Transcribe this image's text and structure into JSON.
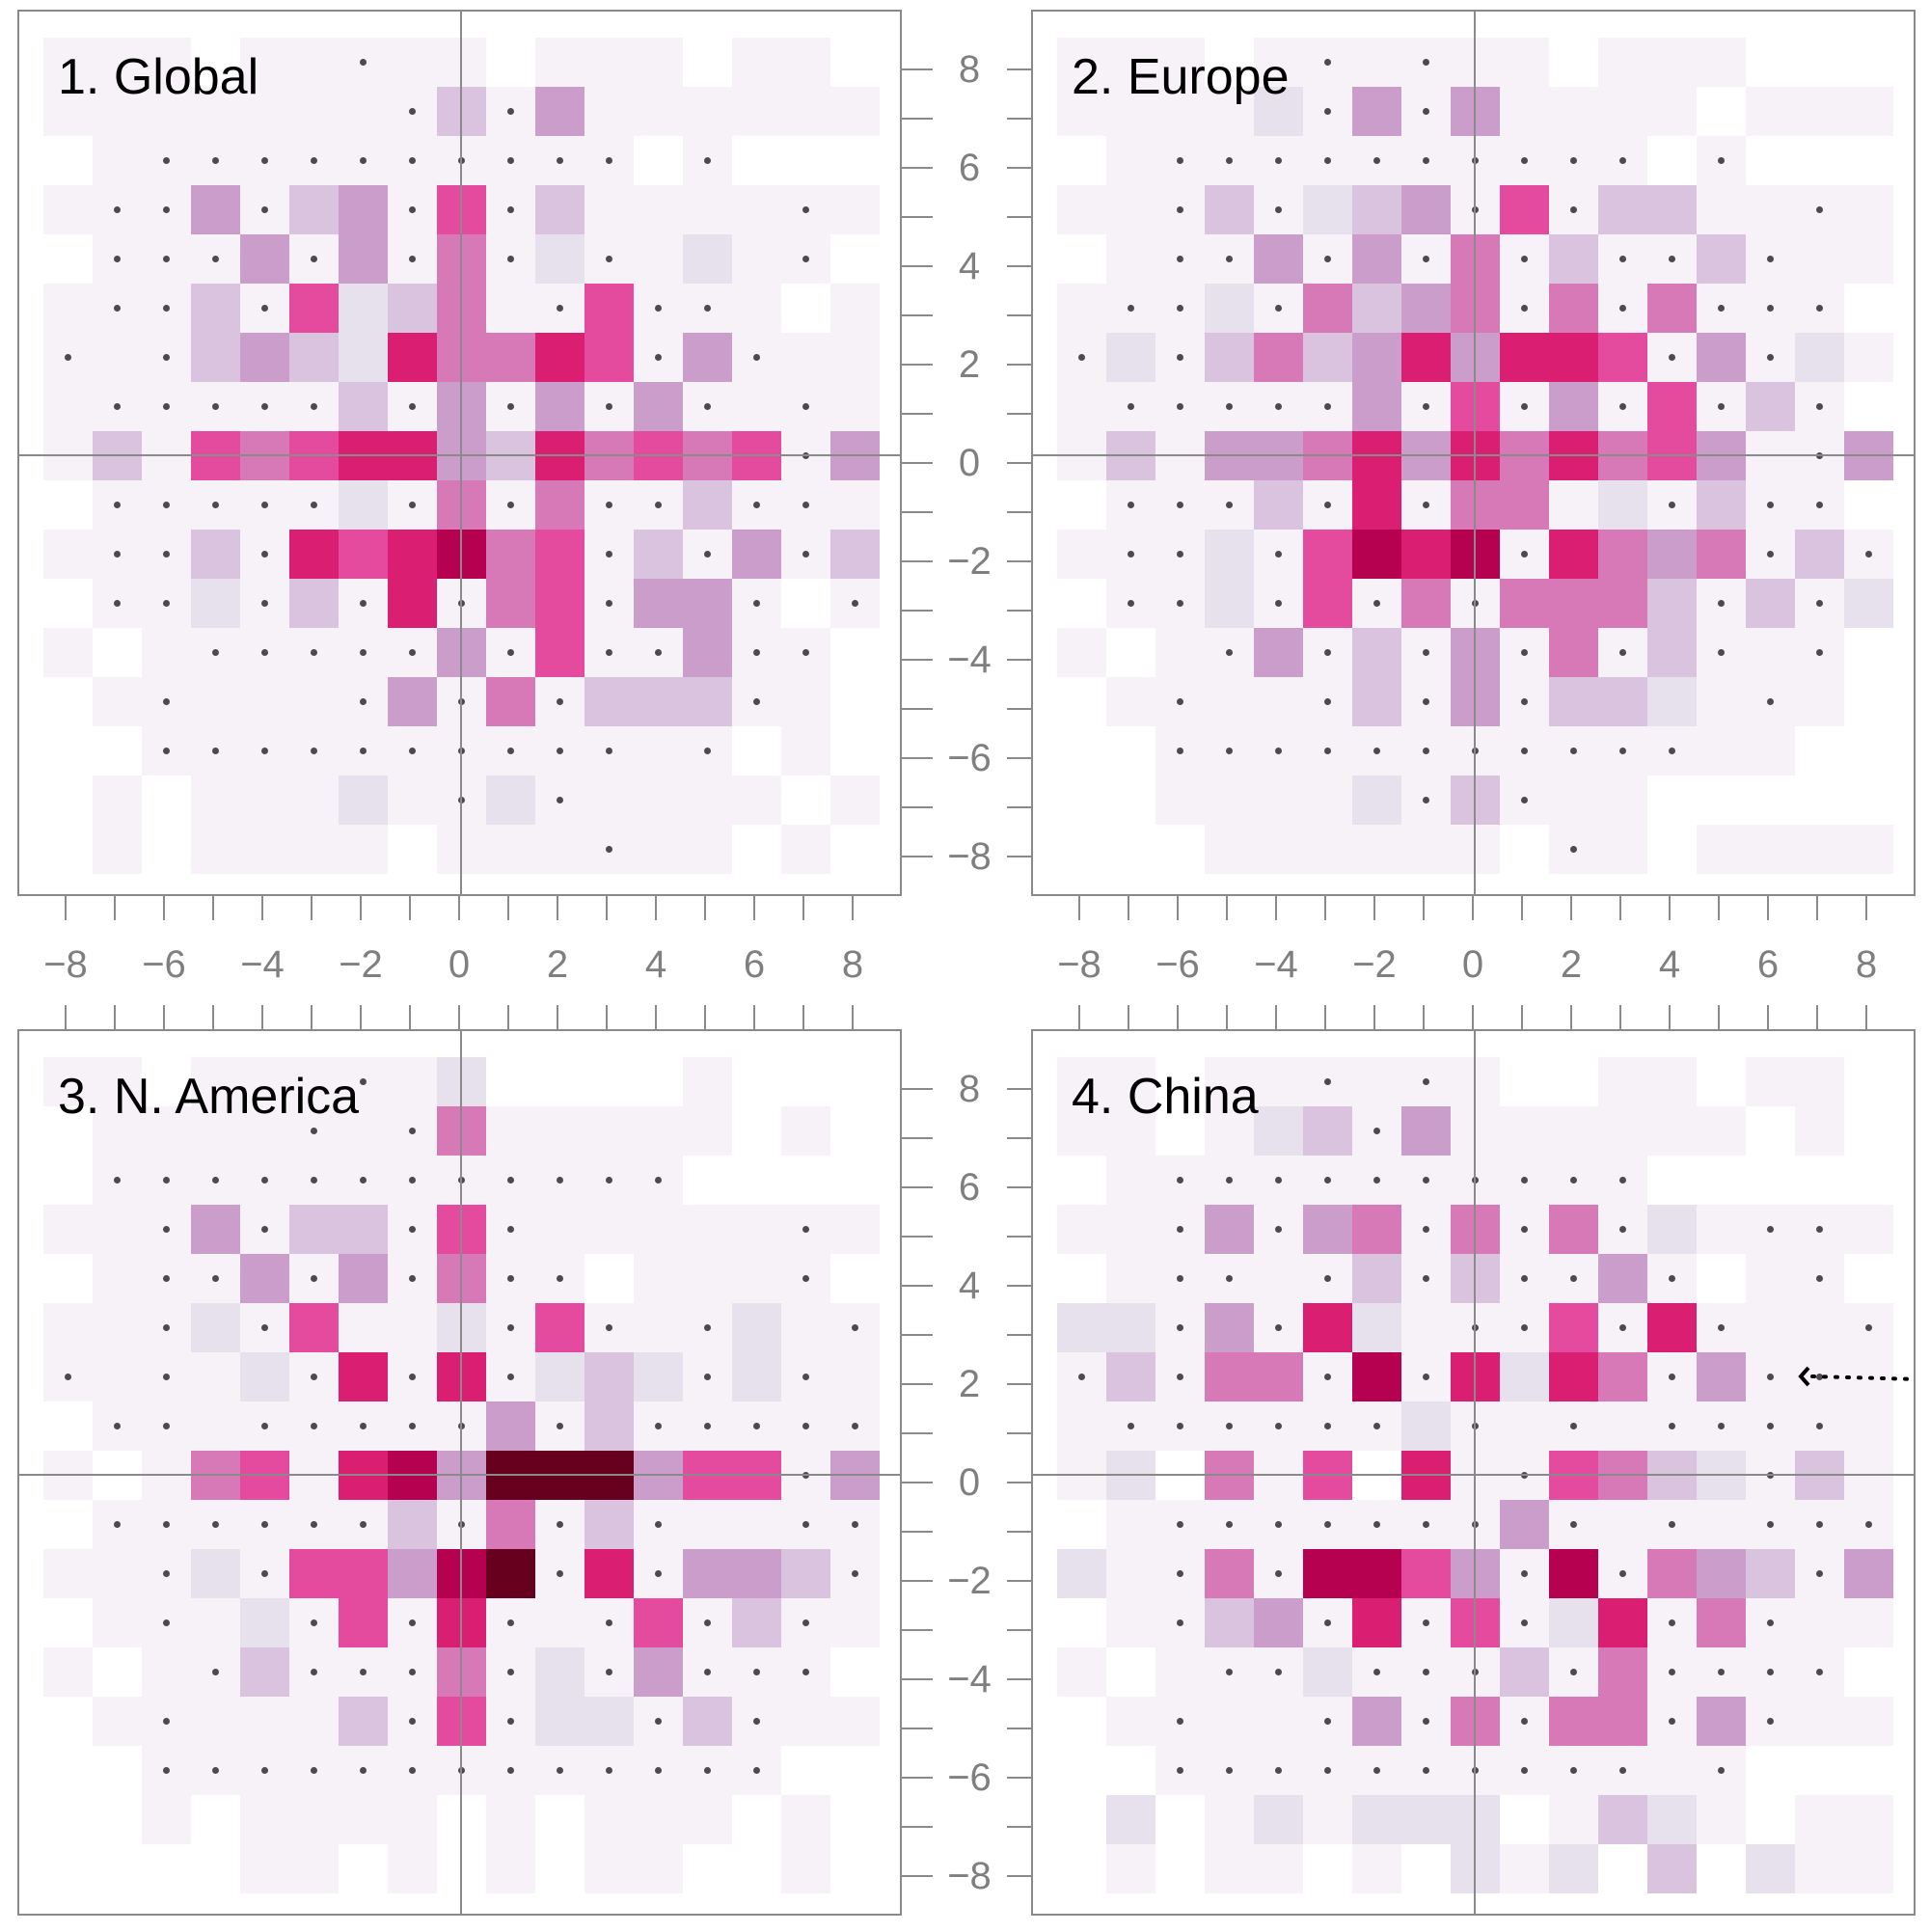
{
  "chart_data": [
    {
      "type": "heatmap",
      "title": "1. Global",
      "x_range": [
        -8,
        8
      ],
      "y_range": [
        -8,
        8
      ],
      "x_ticks": [
        -8,
        -6,
        -4,
        -2,
        0,
        2,
        4,
        6,
        8
      ],
      "y_ticks": [
        8,
        6,
        4,
        2,
        0,
        -2,
        -4,
        -6,
        -8
      ],
      "rows_note": "rows from y=8 (top) to y=-8 (bottom); columns from x=-8 to x=8; digit = intensity level 0-9; '.' = empty cell with dot marker",
      "grid": [
        "111011.1101110110",
        "1111111.3.4111111",
        "01..........0.000",
        "1..4.34.6.31111.1",
        "0...4.4.5.2.121.0",
        "1..3.62351.6..101",
        ".1.343275576.4.11",
        "1.....3.4.4.4.1.1",
        "131656774375656.4",
        "0.....2.5.5..3..1",
        "1..3.767856.3.4.3.",
        "0..2.3.7.56.44.0.",
        "101.....4.6..4..0",
        "01.111.4.5.333.10",
        "00..........1.01",
        "01011121.2.111101",
        "01011110111.11010"
      ]
    },
    {
      "type": "heatmap",
      "title": "2. Europe",
      "x_range": [
        -8,
        8
      ],
      "y_range": [
        -8,
        8
      ],
      "x_ticks": [
        -8,
        -6,
        -4,
        -2,
        0,
        2,
        4,
        6,
        8
      ],
      "y_ticks": [
        8,
        6,
        4,
        2,
        0,
        -2,
        -4,
        -6,
        -8
      ],
      "rows_note": "rows from y=8 (top) to y=-8 (bottom); columns from x=-8 to x=8; digit = intensity level 0-9; '.' = empty cell with dot marker",
      "grid": [
        "11101.1.1101110000",
        "11112.4.4111101110",
        "01..........0.000",
        "11.3.234.6.3311.1",
        "01..4.4.5.3..3.11",
        "1..2.5345.5.5...0",
        ".2.353474776.4.21",
        "1.....4.6.4.6.3.0",
        "131445747575641.4",
        "0...3.7.5512.3..0",
        "1..2.6878.7545.3.",
        "0..2.6.5.5553.3.2",
        "101.4.3.4.5.3.1.0",
        "01.11.3.4.3321.10",
        "00...........11",
        "0011112.3.1100000",
        "0001111110.101111"
      ]
    },
    {
      "type": "heatmap",
      "title": "3. N. America",
      "x_range": [
        -8,
        8
      ],
      "y_range": [
        -8,
        8
      ],
      "x_ticks": [
        -8,
        -6,
        -4,
        -2,
        0,
        2,
        4,
        6,
        8
      ],
      "y_ticks": [
        8,
        6,
        4,
        2,
        0,
        -2,
        -4,
        -6,
        -8
      ],
      "rows_note": "rows from y=8 (top) to y=-8 (bottom); columns from x=-8 to x=8; digit = intensity level 0-9; '.' = empty cell with dot marker",
      "grid": [
        "110111.1200001000",
        "01111.1.511111010",
        "0............0000",
        "11.4.33.6.11111.10",
        "01..4.4.5..0111.01",
        "11.2.6112.6.1.21.10",
        ".1.12.7.7.232.2.1",
        "0..1.....4.3.....0",
        "101561784999466.41",
        "0......3.5.3.11....1",
        "11.2.66489.7.443.3.",
        "01.12.6.7.1.6.3.11",
        "101.3...5.2.4...0",
        "01.1113.6.22.3.11",
        "00.............0",
        "0010111101011101",
        "0000110101011001"
      ]
    },
    {
      "type": "heatmap",
      "title": "4. China",
      "x_range": [
        -8,
        8
      ],
      "y_range": [
        -8,
        8
      ],
      "x_ticks": [
        -8,
        -6,
        -4,
        -2,
        0,
        2,
        4,
        6,
        8
      ],
      "y_ticks": [
        8,
        6,
        4,
        2,
        0,
        -2,
        -4,
        -6,
        -8
      ],
      "rows_note": "rows from y=8 (top) to y=-8 (bottom); columns from x=-8 to x=8; digit = intensity level 0-9; '.' = empty cell with dot marker",
      "grid": [
        "11011.1.1001101101",
        "110123.411111101",
        "01..........00000",
        "11.4.45.5.5.21..1.1",
        "01..1.3.3..4.01.01",
        "22.4.721..6.7.11.10",
        ".3.55.8.7275.4..1",
        "1......2.1.1....1",
        "120516071.6532.311",
        "01.......4.1.1.....1",
        "21.5.8864.8.543.4.",
        "01.34.7.6.27.5.11",
        "101..2...3.5....0",
        "01.11.4.5.55.4.11",
        "00..........1.000",
        "02012122201321011",
        "01011010212030211"
      ],
      "annotations": [
        {
          "type": "dotted-arrow",
          "points_to": [
            6,
            2
          ],
          "from": "right edge"
        }
      ]
    }
  ],
  "panels": [
    {
      "title": "1. Global"
    },
    {
      "title": "2. Europe"
    },
    {
      "title": "3. N. America"
    },
    {
      "title": "4. China"
    }
  ],
  "axes": {
    "y_tick_labels": [
      "8",
      "6",
      "4",
      "2",
      "0",
      "−2",
      "−4",
      "−6",
      "−8"
    ],
    "x_tick_labels": [
      "−8",
      "−6",
      "−4",
      "−2",
      "0",
      "2",
      "4",
      "6",
      "8"
    ]
  },
  "palette": [
    "#ffffff",
    "#f6f2f8",
    "#e7e1ee",
    "#d9c3df",
    "#cb9dcb",
    "#d779b6",
    "#e44a9d",
    "#da1f72",
    "#b60050",
    "#67001f"
  ],
  "dot_color": "#4a4a4f",
  "axis_color": "#8a8a8a",
  "label_color": "#7f7f7f"
}
